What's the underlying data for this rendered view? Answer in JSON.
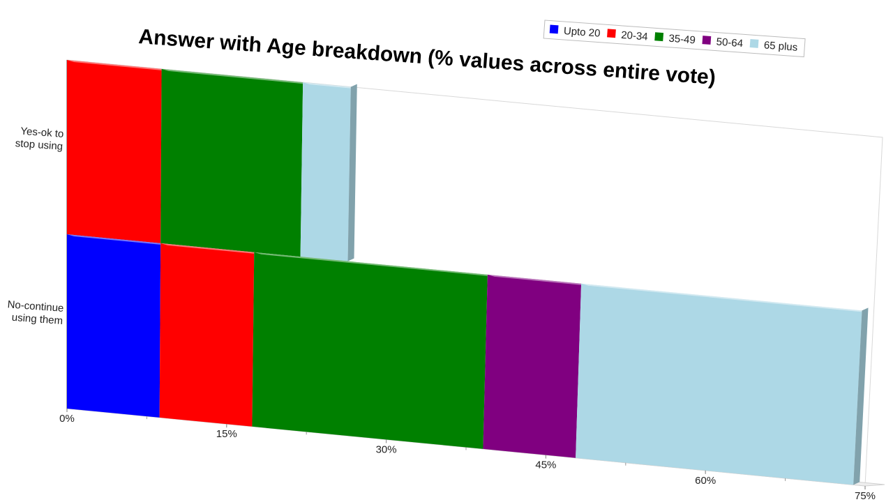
{
  "chart_data": {
    "type": "bar",
    "orientation": "horizontal",
    "stacked": true,
    "title": "Answer with Age breakdown (% values across entire vote)",
    "categories": [
      "Yes-ok to\nstop using",
      "No-continue\nusing them"
    ],
    "series": [
      {
        "name": "Upto 20",
        "color": "#0000ff",
        "values": [
          0,
          8.7
        ]
      },
      {
        "name": "20-34",
        "color": "#ff0000",
        "values": [
          8.7,
          8.7
        ]
      },
      {
        "name": "35-49",
        "color": "#008000",
        "values": [
          13.0,
          21.7
        ]
      },
      {
        "name": "50-64",
        "color": "#800080",
        "values": [
          0,
          8.7
        ]
      },
      {
        "name": "65 plus",
        "color": "#add8e6",
        "values": [
          4.4,
          26.1
        ]
      }
    ],
    "x_ticks": [
      "0%",
      "15%",
      "30%",
      "45%",
      "60%",
      "75%"
    ],
    "xlim": [
      0,
      75
    ],
    "legend_position": "top-right",
    "grid": false,
    "view": "3d-perspective"
  }
}
